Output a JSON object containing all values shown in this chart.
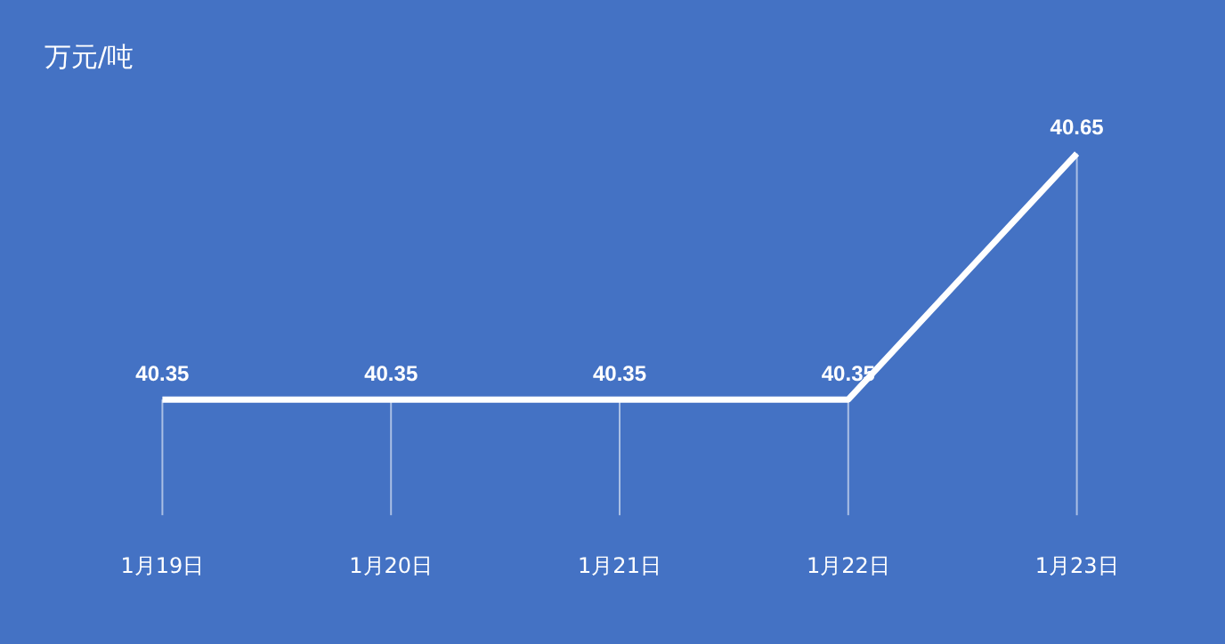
{
  "chart_data": {
    "type": "line",
    "ylabel": "万元/吨",
    "categories": [
      "1月19日",
      "1月20日",
      "1月21日",
      "1月22日",
      "1月23日"
    ],
    "series": [
      {
        "color": "#ffffff",
        "values": [
          40.35,
          40.35,
          40.35,
          40.35,
          40.65
        ]
      }
    ],
    "data_labels": true,
    "grid": "x",
    "legend": false,
    "marker": "none",
    "line_style": "solid"
  }
}
